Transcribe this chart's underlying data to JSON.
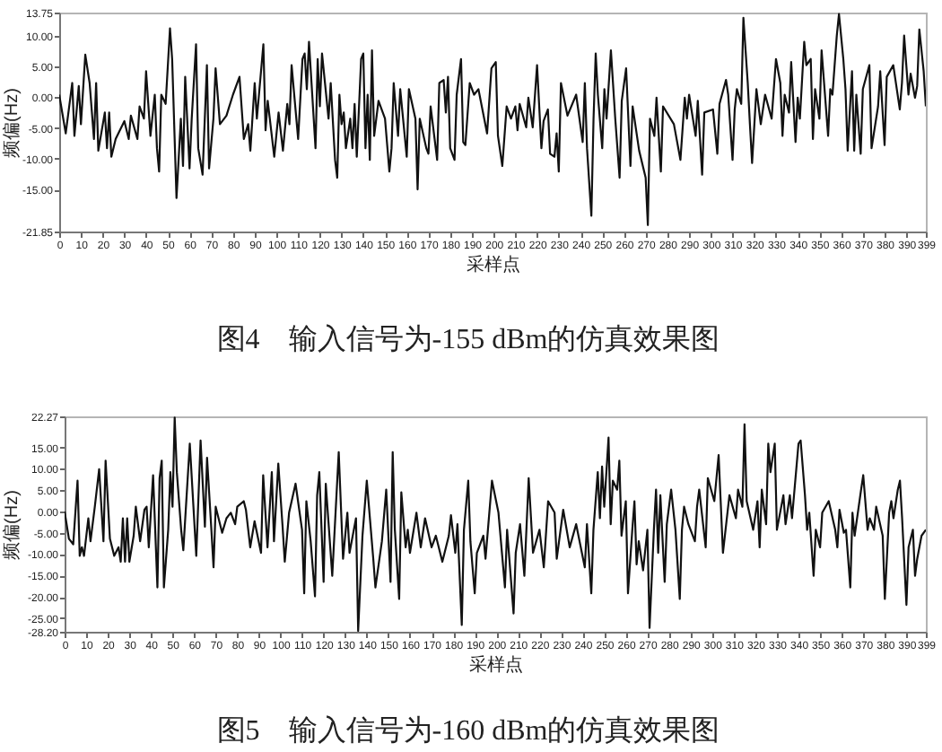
{
  "chart_data": [
    {
      "type": "line",
      "title": "图4　输入信号为-155 dBm的仿真效果图",
      "xlabel": "采样点",
      "ylabel": "频偏(Hz)",
      "x": [
        0,
        3,
        6,
        7,
        9,
        10,
        12,
        14,
        16,
        17,
        18,
        21,
        22,
        23,
        24,
        26,
        30,
        32,
        33,
        36,
        37,
        39,
        40,
        42,
        44,
        45,
        46,
        47,
        49,
        51,
        52,
        54,
        56,
        57,
        58,
        60,
        61,
        63,
        64,
        66,
        68,
        69,
        71,
        72,
        74,
        77,
        80,
        83,
        85,
        87,
        88,
        90,
        91,
        94,
        95,
        96,
        99,
        101,
        103,
        105,
        106,
        107,
        110,
        112,
        113,
        114,
        115,
        118,
        119,
        120,
        121,
        124,
        125,
        127,
        128,
        129,
        130,
        131,
        132,
        134,
        135,
        136,
        137,
        139,
        140,
        141,
        142,
        143,
        144,
        145,
        147,
        150,
        152,
        153,
        154,
        156,
        157,
        160,
        161,
        164,
        165,
        166,
        169,
        170,
        171,
        174,
        175,
        177,
        178,
        179,
        180,
        182,
        183,
        185,
        186,
        187,
        189,
        191,
        193,
        197,
        199,
        201,
        202,
        204,
        206,
        208,
        210,
        211,
        212,
        215,
        216,
        218,
        220,
        222,
        223,
        225,
        226,
        228,
        229,
        230,
        231,
        234,
        238,
        241,
        242,
        243,
        245,
        246,
        247,
        248,
        250,
        251,
        252,
        254,
        256,
        258,
        259,
        261,
        263,
        264,
        267,
        270,
        271,
        272,
        274,
        275,
        277,
        278,
        283,
        286,
        288,
        289,
        290,
        293,
        294,
        296,
        297,
        301,
        303,
        304,
        307,
        308,
        310,
        311,
        312,
        314,
        315,
        317,
        318,
        319,
        321,
        323,
        325,
        328,
        330,
        332,
        333,
        334,
        336,
        337,
        339,
        340,
        341,
        343,
        344,
        346,
        347,
        348,
        350,
        351,
        354,
        355,
        356,
        358,
        359,
        361,
        362,
        363,
        365,
        366,
        367,
        369,
        370,
        373,
        374,
        377,
        378,
        380,
        381,
        384,
        387,
        388,
        389,
        391,
        392,
        394,
        395,
        396,
        398,
        399
      ],
      "series": [
        {
          "color": "#111111",
          "values": [
            0.4,
            -5.9,
            2.3,
            -6.3,
            1.8,
            -4.4,
            6.9,
            2.3,
            -6.8,
            2.3,
            -8.7,
            -2.5,
            -8.3,
            -2.5,
            -9.7,
            -6.8,
            -3.9,
            -6.8,
            -3.0,
            -6.8,
            -1.5,
            -3.5,
            4.2,
            -6.3,
            0.4,
            -8.3,
            -12.1,
            0.4,
            -1.1,
            11.2,
            6.2,
            -16.4,
            -3.5,
            -11.2,
            3.3,
            -11.6,
            -3.5,
            8.6,
            -8.3,
            -12.6,
            5.2,
            -11.6,
            -3.5,
            4.7,
            -4.4,
            -3.0,
            0.4,
            3.3,
            -6.8,
            -4.4,
            -8.7,
            2.3,
            -3.5,
            8.6,
            -5.4,
            -0.6,
            -9.7,
            -2.5,
            -8.7,
            -1.1,
            -4.4,
            5.2,
            -6.8,
            6.2,
            7.1,
            1.3,
            9.0,
            -8.3,
            6.2,
            -1.5,
            7.1,
            -3.5,
            2.3,
            -10.2,
            -13.1,
            0.4,
            -4.4,
            -2.5,
            -8.3,
            -3.5,
            -8.3,
            -1.1,
            -9.7,
            6.2,
            7.1,
            -8.3,
            0.4,
            -10.2,
            7.6,
            -6.3,
            -0.6,
            -3.5,
            -12.1,
            -8.3,
            2.3,
            -6.3,
            1.3,
            -9.7,
            1.3,
            -3.5,
            -15.0,
            -3.5,
            -8.3,
            -9.2,
            -1.5,
            -10.2,
            2.3,
            2.8,
            -2.5,
            3.3,
            -8.3,
            -10.2,
            0.4,
            6.2,
            -7.3,
            -7.8,
            2.3,
            0.4,
            1.3,
            -5.9,
            4.7,
            5.7,
            -6.3,
            -11.2,
            -1.5,
            -3.5,
            -1.5,
            -5.4,
            -1.1,
            -4.9,
            -0.1,
            -4.9,
            5.2,
            -8.3,
            -3.9,
            -2.0,
            -9.2,
            -9.7,
            -5.9,
            -12.1,
            2.3,
            -3.0,
            0.4,
            -7.3,
            2.3,
            -8.3,
            -19.3,
            -3.5,
            7.1,
            0.4,
            -8.3,
            1.3,
            -3.5,
            7.6,
            -3.5,
            -13.1,
            -0.6,
            4.7,
            -11.2,
            -1.5,
            -8.7,
            -13.1,
            -20.8,
            -3.5,
            -6.3,
            -0.1,
            -12.1,
            -1.5,
            -4.4,
            -10.2,
            -0.1,
            -3.5,
            0.4,
            -6.3,
            -0.6,
            -12.6,
            -2.5,
            -2.0,
            -9.2,
            -1.1,
            2.8,
            0.4,
            -10.2,
            -2.0,
            1.3,
            -1.1,
            12.9,
            2.3,
            -4.4,
            -10.7,
            1.3,
            -4.4,
            0.4,
            -3.5,
            6.2,
            2.3,
            -6.3,
            0.4,
            -2.5,
            5.7,
            -7.3,
            -0.1,
            -3.5,
            9.0,
            5.2,
            6.2,
            -6.8,
            1.3,
            -3.5,
            7.6,
            -6.3,
            1.3,
            0.4,
            10.0,
            13.5,
            6.2,
            1.3,
            -8.7,
            4.2,
            -8.7,
            0.4,
            -9.2,
            1.3,
            5.2,
            -8.3,
            -1.5,
            4.2,
            -7.8,
            3.3,
            5.2,
            -2.0,
            2.3,
            10.0,
            0.4,
            3.8,
            -0.1,
            1.8,
            11.0,
            4.2,
            -1.5
          ]
        }
      ],
      "xlim": [
        0,
        399
      ],
      "xticks": [
        0,
        10,
        20,
        30,
        40,
        50,
        60,
        70,
        80,
        90,
        100,
        110,
        120,
        130,
        140,
        150,
        160,
        170,
        180,
        190,
        200,
        210,
        220,
        230,
        240,
        250,
        260,
        270,
        280,
        290,
        300,
        310,
        320,
        330,
        340,
        350,
        360,
        370,
        380,
        390,
        399
      ],
      "ylim": [
        -21.85,
        13.75
      ],
      "yticks": [
        -21.85,
        {
          "value": -15,
          "label": "-15.00"
        },
        {
          "value": -10,
          "label": "-10.00"
        },
        {
          "value": -5,
          "label": "-5.00"
        },
        {
          "value": 0,
          "label": "0.00"
        },
        {
          "value": 5,
          "label": "5.00"
        },
        {
          "value": 10,
          "label": "10.00"
        },
        13.75
      ]
    },
    {
      "type": "line",
      "title": "图5　输入信号为-160 dBm的仿真效果图",
      "xlabel": "采样点",
      "ylabel": "频偏(Hz)",
      "x": [
        0,
        2,
        4,
        6,
        7,
        8,
        9,
        11,
        12,
        14,
        16,
        18,
        19,
        21,
        23,
        25,
        26,
        27,
        28,
        29,
        30,
        32,
        33,
        35,
        37,
        38,
        39,
        41,
        43,
        44,
        45,
        46,
        48,
        49,
        50,
        51,
        52,
        54,
        55,
        58,
        61,
        63,
        65,
        66,
        68,
        69,
        70,
        73,
        75,
        77,
        79,
        80,
        83,
        84,
        86,
        88,
        91,
        92,
        94,
        96,
        97,
        99,
        101,
        102,
        104,
        107,
        110,
        111,
        112,
        114,
        116,
        117,
        118,
        120,
        121,
        124,
        127,
        129,
        131,
        132,
        135,
        136,
        138,
        140,
        143,
        144,
        147,
        149,
        151,
        152,
        153,
        155,
        156,
        158,
        159,
        160,
        163,
        165,
        167,
        170,
        172,
        175,
        178,
        179,
        181,
        182,
        184,
        185,
        187,
        188,
        190,
        191,
        194,
        195,
        198,
        201,
        204,
        205,
        208,
        209,
        211,
        213,
        215,
        217,
        220,
        222,
        224,
        227,
        228,
        231,
        234,
        237,
        241,
        242,
        244,
        245,
        247,
        248,
        249,
        250,
        252,
        253,
        254,
        256,
        257,
        258,
        260,
        261,
        263,
        264,
        265,
        266,
        268,
        270,
        271,
        273,
        274,
        275,
        276,
        278,
        279,
        281,
        283,
        285,
        286,
        287,
        289,
        292,
        293,
        294,
        297,
        298,
        301,
        303,
        305,
        308,
        311,
        312,
        314,
        315,
        316,
        319,
        321,
        322,
        323,
        325,
        326,
        327,
        329,
        330,
        333,
        334,
        336,
        337,
        340,
        341,
        343,
        344,
        345,
        347,
        348,
        350,
        351,
        354,
        357,
        358,
        359,
        361,
        362,
        364,
        365,
        366,
        369,
        370,
        372,
        373,
        375,
        376,
        379,
        380,
        382,
        383,
        384,
        386,
        387,
        388,
        390,
        391,
        393,
        394,
        395,
        397,
        399
      ],
      "series": [
        {
          "color": "#111111",
          "values": [
            0.0,
            -6.4,
            -7.7,
            7.2,
            -10.4,
            -8.4,
            -10.4,
            -1.6,
            -7.0,
            1.1,
            9.9,
            -7.0,
            11.9,
            -6.4,
            -10.4,
            -8.4,
            -11.8,
            -1.6,
            -11.8,
            -1.6,
            -11.8,
            -5.7,
            1.1,
            -7.0,
            0.4,
            1.1,
            -8.4,
            8.5,
            -17.8,
            7.8,
            11.9,
            -17.8,
            -4.3,
            9.2,
            1.1,
            22.0,
            9.2,
            -4.3,
            -9.1,
            15.9,
            -10.4,
            16.6,
            -3.6,
            12.6,
            -4.3,
            -13.1,
            1.1,
            -5.0,
            -1.6,
            -0.3,
            -3.0,
            1.1,
            2.4,
            0.4,
            -8.4,
            -2.3,
            -9.7,
            8.5,
            -8.4,
            9.2,
            -7.0,
            11.2,
            -3.6,
            -11.8,
            -0.3,
            6.5,
            -4.3,
            -19.2,
            2.4,
            -7.0,
            -19.9,
            3.8,
            9.2,
            -16.5,
            6.5,
            -15.1,
            13.9,
            -11.1,
            -0.3,
            -9.7,
            -1.6,
            -28.0,
            -5.7,
            7.2,
            -11.1,
            -17.8,
            -7.0,
            5.1,
            -16.5,
            13.9,
            -4.3,
            -20.5,
            4.5,
            -8.4,
            -4.3,
            -9.7,
            -0.3,
            -8.4,
            -1.6,
            -8.4,
            -5.7,
            -11.8,
            -5.7,
            -0.9,
            -9.7,
            -3.0,
            -26.6,
            -4.3,
            7.2,
            -7.0,
            -19.2,
            -9.7,
            -5.7,
            -11.1,
            7.2,
            -0.3,
            -17.8,
            -4.3,
            -23.9,
            -9.7,
            -3.0,
            -15.1,
            7.8,
            -9.7,
            -4.3,
            -13.1,
            2.4,
            -0.3,
            -11.1,
            0.4,
            -8.4,
            -3.0,
            -13.1,
            -3.0,
            -19.2,
            -4.3,
            9.2,
            -1.6,
            10.5,
            1.1,
            17.3,
            -3.0,
            7.2,
            5.1,
            11.9,
            -5.7,
            2.4,
            -19.2,
            -4.3,
            2.4,
            -12.4,
            -7.0,
            -13.8,
            -4.3,
            -27.3,
            -4.3,
            5.1,
            -9.7,
            3.8,
            -16.5,
            -3.0,
            5.1,
            -4.3,
            -20.5,
            -4.3,
            1.1,
            -3.0,
            -7.0,
            1.1,
            5.1,
            -8.4,
            7.8,
            2.4,
            13.2,
            -9.7,
            3.8,
            -1.6,
            5.1,
            1.1,
            20.4,
            2.4,
            -4.3,
            2.4,
            -8.4,
            5.1,
            -3.0,
            15.9,
            9.2,
            15.9,
            -4.3,
            3.8,
            -3.0,
            3.8,
            -1.6,
            15.9,
            16.6,
            3.8,
            -4.3,
            -0.3,
            -15.1,
            -4.3,
            -8.4,
            -0.3,
            2.4,
            -4.3,
            -8.4,
            0.4,
            -5.0,
            -4.3,
            -17.8,
            -0.3,
            -5.7,
            5.1,
            8.5,
            -4.3,
            -1.6,
            -4.3,
            1.1,
            -5.7,
            -20.5,
            -0.3,
            2.4,
            -1.6,
            5.1,
            7.2,
            -1.6,
            -21.9,
            -8.4,
            -4.3,
            -15.1,
            -11.1,
            -5.7,
            -4.3
          ]
        }
      ],
      "xlim": [
        0,
        399
      ],
      "xticks": [
        0,
        10,
        20,
        30,
        40,
        50,
        60,
        70,
        80,
        90,
        100,
        110,
        120,
        130,
        140,
        150,
        160,
        170,
        180,
        190,
        200,
        210,
        220,
        230,
        240,
        250,
        260,
        270,
        280,
        290,
        300,
        310,
        320,
        330,
        340,
        350,
        360,
        370,
        380,
        390,
        399
      ],
      "ylim": [
        -28.2,
        22.27
      ],
      "yticks": [
        {
          "value": -28.2,
          "label": "-28.20"
        },
        {
          "value": -25,
          "label": "-25.00"
        },
        {
          "value": -20,
          "label": "-20.00"
        },
        {
          "value": -15,
          "label": "-15.00"
        },
        {
          "value": -10,
          "label": "-10.00"
        },
        {
          "value": -5,
          "label": "-5.00"
        },
        {
          "value": 0,
          "label": "0.00"
        },
        {
          "value": 5,
          "label": "5.00"
        },
        {
          "value": 10,
          "label": "10.00"
        },
        {
          "value": 15,
          "label": "15.00"
        },
        22.27
      ]
    }
  ]
}
